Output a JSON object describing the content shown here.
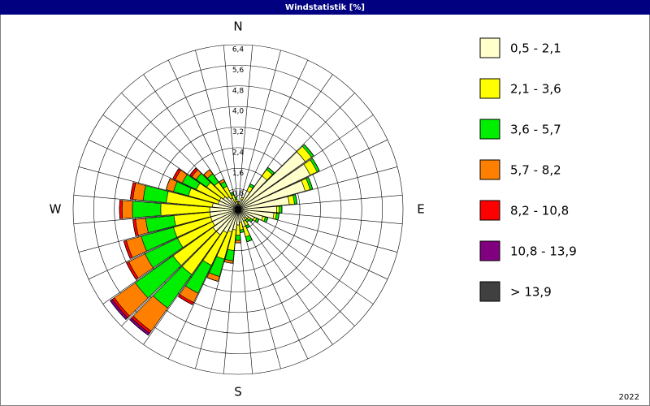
{
  "chart_data": {
    "type": "windrose",
    "title": "Windstatistik [%]",
    "footer": "2022",
    "compass": [
      "N",
      "E",
      "S",
      "W"
    ],
    "ylim": [
      0,
      6.4
    ],
    "yticks": [
      {
        "value": 0.8,
        "label": "0,8"
      },
      {
        "value": 1.6,
        "label": "1,6"
      },
      {
        "value": 2.4,
        "label": "2,4"
      },
      {
        "value": 3.2,
        "label": "3,2"
      },
      {
        "value": 4.0,
        "label": "4,0"
      },
      {
        "value": 4.8,
        "label": "4,8"
      },
      {
        "value": 5.6,
        "label": "5,6"
      },
      {
        "value": 6.4,
        "label": "6,4"
      }
    ],
    "series": [
      {
        "name": "0,5 - 2,1",
        "color": "#ffffcc",
        "values": [
          0.2,
          0.2,
          0.4,
          0.8,
          1.6,
          3.2,
          3.1,
          2.7,
          2.0,
          1.5,
          1.4,
          1.0,
          0.7,
          0.5,
          0.4,
          0.5,
          0.7,
          0.5,
          0.6,
          0.8,
          0.9,
          1.0,
          1.2,
          1.2,
          1.1,
          1.1,
          1.1,
          1.1,
          1.0,
          0.8,
          0.8,
          0.7,
          0.6,
          0.5,
          0.3,
          0.3
        ]
      },
      {
        "name": "2,1 - 3,6",
        "color": "#ffff00",
        "values": [
          0.1,
          0.1,
          0.1,
          0.2,
          0.3,
          0.3,
          0.3,
          0.2,
          0.2,
          0.1,
          0.1,
          0.1,
          0.1,
          0.1,
          0.1,
          0.2,
          0.4,
          0.3,
          0.4,
          0.8,
          1.1,
          1.4,
          1.9,
          1.9,
          1.5,
          1.5,
          1.4,
          1.9,
          1.8,
          1.2,
          1.0,
          0.8,
          0.7,
          0.5,
          0.3,
          0.1
        ]
      },
      {
        "name": "3,6 - 5,7",
        "color": "#00ee00",
        "values": [
          0,
          0,
          0,
          0.1,
          0.1,
          0.1,
          0.1,
          0.1,
          0.1,
          0.1,
          0.1,
          0.1,
          0.1,
          0.1,
          0.1,
          0.1,
          0.2,
          0.1,
          0.2,
          0.4,
          0.7,
          1.2,
          1.6,
          1.8,
          1.4,
          1.3,
          1.1,
          1.1,
          0.9,
          0.6,
          0.6,
          0.5,
          0.4,
          0.2,
          0.1,
          0.1
        ]
      },
      {
        "name": "5,7 - 8,2",
        "color": "#ff8000",
        "values": [
          0,
          0,
          0,
          0,
          0,
          0,
          0,
          0,
          0,
          0,
          0,
          0,
          0,
          0,
          0,
          0,
          0,
          0,
          0.1,
          0.1,
          0.2,
          0.4,
          1.1,
          1.0,
          0.7,
          0.6,
          0.4,
          0.4,
          0.4,
          0.3,
          0.3,
          0.2,
          0.2,
          0.1,
          0,
          0
        ]
      },
      {
        "name": "8,2 - 10,8",
        "color": "#ff0000",
        "values": [
          0,
          0,
          0,
          0,
          0,
          0,
          0,
          0,
          0,
          0,
          0,
          0,
          0,
          0,
          0,
          0,
          0,
          0,
          0,
          0,
          0,
          0.1,
          0.1,
          0.1,
          0.1,
          0.1,
          0.1,
          0.1,
          0.1,
          0,
          0.1,
          0.1,
          0,
          0,
          0,
          0
        ]
      },
      {
        "name": "10,8 - 13,9",
        "color": "#800080",
        "values": [
          0,
          0,
          0,
          0,
          0,
          0,
          0,
          0,
          0,
          0,
          0,
          0,
          0,
          0,
          0,
          0,
          0,
          0,
          0,
          0,
          0,
          0,
          0.1,
          0.1,
          0,
          0,
          0,
          0,
          0,
          0,
          0,
          0,
          0,
          0,
          0,
          0
        ]
      },
      {
        "name": "> 13,9",
        "color": "#404040",
        "values": [
          0,
          0,
          0,
          0,
          0,
          0,
          0,
          0,
          0,
          0,
          0,
          0,
          0,
          0,
          0,
          0,
          0,
          0,
          0,
          0,
          0,
          0,
          0,
          0,
          0,
          0,
          0,
          0,
          0,
          0,
          0,
          0,
          0,
          0,
          0,
          0
        ]
      }
    ]
  }
}
